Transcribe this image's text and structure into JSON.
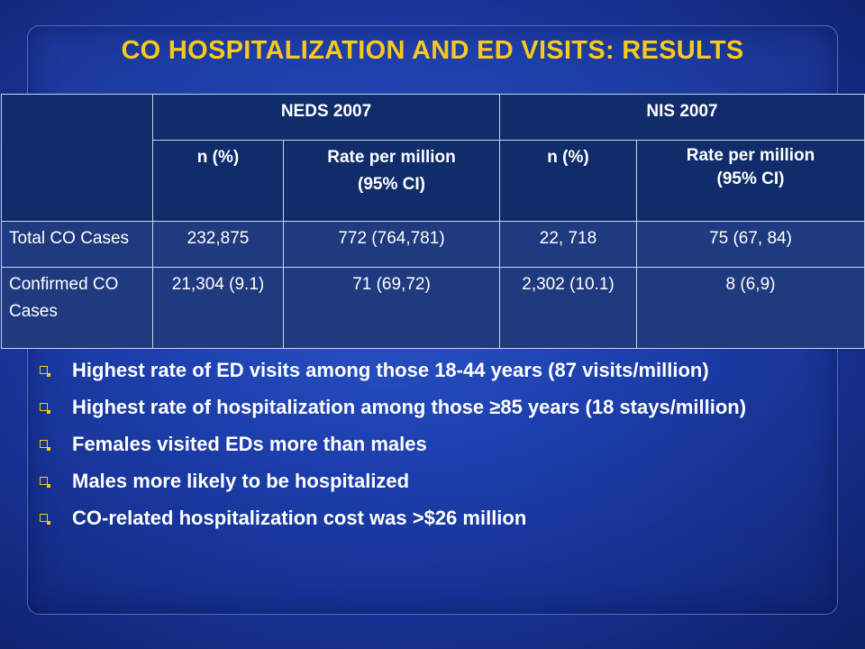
{
  "title": "CO HOSPITALIZATION AND ED VISITS: RESULTS",
  "colors": {
    "title": "#f7c91d",
    "bullet": "#f7c91d",
    "table_header_bg": "#102c6a",
    "table_body_bg": "#1f3a7e"
  },
  "table": {
    "groups": [
      "NEDS 2007",
      "NIS 2007"
    ],
    "columns": [
      {
        "line1": "n (%)",
        "line2": ""
      },
      {
        "line1": "Rate per million",
        "line2": "(95% CI)"
      },
      {
        "line1": "n (%)",
        "line2": ""
      },
      {
        "line1": "Rate per million",
        "line2": "(95% CI)"
      }
    ],
    "rows": [
      {
        "label": "Total CO Cases",
        "cells": [
          "232,875",
          "772 (764,781)",
          "22, 718",
          "75 (67, 84)"
        ]
      },
      {
        "label": "Confirmed CO Cases",
        "cells": [
          "21,304 (9.1)",
          "71 (69,72)",
          "2,302 (10.1)",
          "8 (6,9)"
        ]
      }
    ]
  },
  "bullets": [
    "Highest rate of ED visits among those 18-44 years  (87 visits/million)",
    "Highest rate of hospitalization among those ≥85 years (18 stays/million)",
    "Females visited EDs more than males",
    "Males more likely to be hospitalized",
    "CO-related hospitalization cost was >$26 million"
  ],
  "bullet_icon": "hollow-square-bullet-icon"
}
